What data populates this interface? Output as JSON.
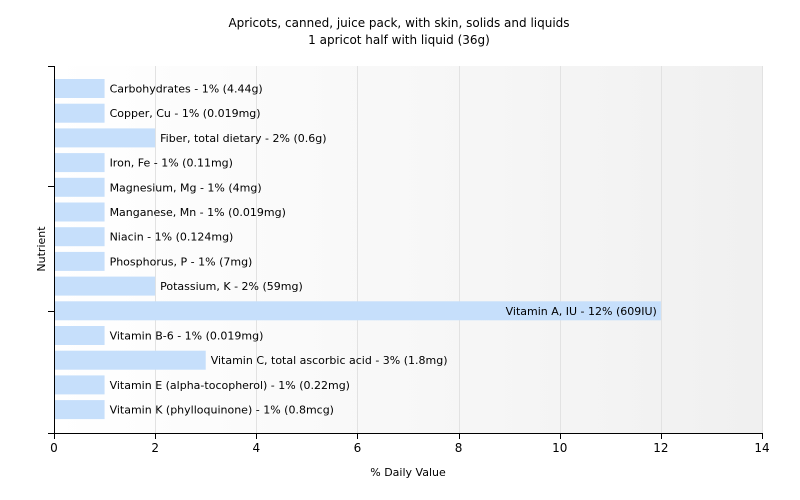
{
  "chart_data": {
    "type": "bar",
    "orientation": "horizontal",
    "title": "Apricots, canned, juice pack, with skin, solids and liquids",
    "subtitle": "1 apricot half with liquid (36g)",
    "xlabel": "% Daily Value",
    "ylabel": "Nutrient",
    "xlim": [
      0,
      14
    ],
    "xticks": [
      0,
      2,
      4,
      6,
      8,
      10,
      12,
      14
    ],
    "grid": "vertical",
    "bar_color": "#c6dffb",
    "categories": [
      "Carbohydrates",
      "Copper, Cu",
      "Fiber, total dietary",
      "Iron, Fe",
      "Magnesium, Mg",
      "Manganese, Mn",
      "Niacin",
      "Phosphorus, P",
      "Potassium, K",
      "Vitamin A, IU",
      "Vitamin B-6",
      "Vitamin C, total ascorbic acid",
      "Vitamin E (alpha-tocopherol)",
      "Vitamin K (phylloquinone)"
    ],
    "values": [
      1,
      1,
      2,
      1,
      1,
      1,
      1,
      1,
      2,
      12,
      1,
      3,
      1,
      1
    ],
    "labels": [
      "Carbohydrates - 1% (4.44g)",
      "Copper, Cu - 1% (0.019mg)",
      "Fiber, total dietary - 2% (0.6g)",
      "Iron, Fe - 1% (0.11mg)",
      "Magnesium, Mg - 1% (4mg)",
      "Manganese, Mn - 1% (0.019mg)",
      "Niacin - 1% (0.124mg)",
      "Phosphorus, P - 1% (7mg)",
      "Potassium, K - 2% (59mg)",
      "Vitamin A, IU - 12% (609IU)",
      "Vitamin B-6 - 1% (0.019mg)",
      "Vitamin C, total ascorbic acid - 3% (1.8mg)",
      "Vitamin E (alpha-tocopherol) - 1% (0.22mg)",
      "Vitamin K (phylloquinone) - 1% (0.8mcg)"
    ]
  }
}
